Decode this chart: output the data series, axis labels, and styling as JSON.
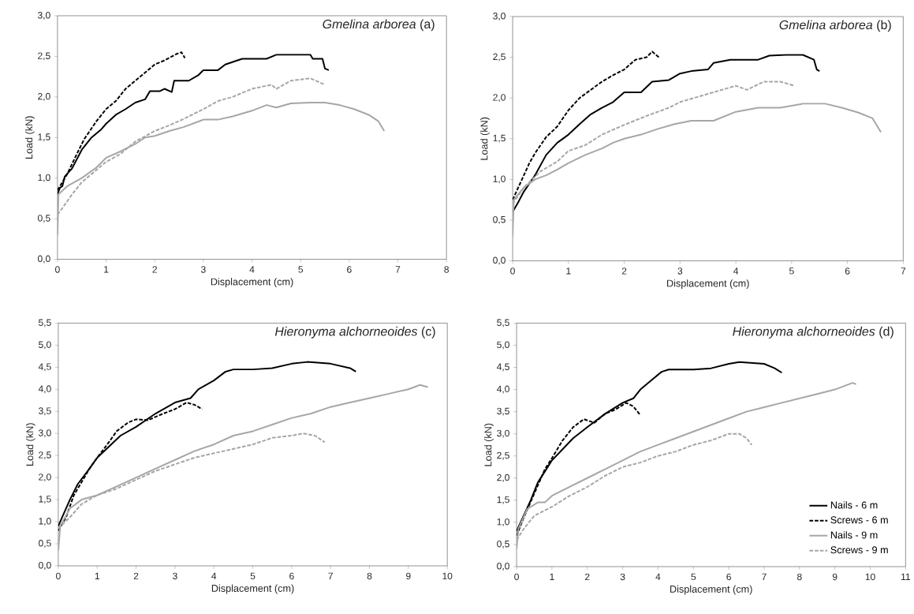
{
  "chart_data": [
    {
      "type": "line",
      "title": "*Gmelina arborea* (a)",
      "xlabel": "Displacement (cm)",
      "ylabel": "Load (kN)",
      "xlim": [
        0,
        8
      ],
      "xticks": [
        0,
        1,
        2,
        3,
        4,
        5,
        6,
        7,
        8
      ],
      "ylim": [
        0,
        3
      ],
      "yticks": [
        {
          "value": 0,
          "label": "0,0"
        },
        {
          "value": 0.5,
          "label": "0,5"
        },
        {
          "value": 1,
          "label": "1,0"
        },
        {
          "value": 1.5,
          "label": "1,5"
        },
        {
          "value": 2,
          "label": "2,0"
        },
        {
          "value": 2.5,
          "label": "2,5"
        },
        {
          "value": 3,
          "label": "3,0"
        }
      ],
      "series": [
        {
          "color": "#000000",
          "line_style": "solid",
          "x": [
            0,
            0.05,
            0.1,
            0.15,
            0.3,
            0.5,
            0.7,
            0.9,
            1.0,
            1.2,
            1.4,
            1.6,
            1.8,
            1.9,
            2.1,
            2.2,
            2.35,
            2.4,
            2.7,
            2.9,
            3.0,
            3.3,
            3.45,
            3.7,
            3.8,
            4.3,
            4.5,
            4.8,
            5.2,
            5.25,
            5.45,
            5.5,
            5.58
          ],
          "values": [
            0.8,
            0.88,
            0.9,
            1.02,
            1.12,
            1.35,
            1.5,
            1.6,
            1.67,
            1.78,
            1.85,
            1.93,
            1.97,
            2.07,
            2.07,
            2.1,
            2.06,
            2.2,
            2.2,
            2.27,
            2.33,
            2.33,
            2.4,
            2.45,
            2.47,
            2.47,
            2.52,
            2.52,
            2.52,
            2.47,
            2.47,
            2.35,
            2.33
          ]
        },
        {
          "color": "#000000",
          "line_style": "dashed",
          "x": [
            0,
            0.2,
            0.4,
            0.55,
            0.8,
            1.0,
            1.2,
            1.4,
            1.6,
            1.8,
            2.0,
            2.2,
            2.45,
            2.55,
            2.62
          ],
          "values": [
            0.85,
            1.05,
            1.3,
            1.48,
            1.7,
            1.85,
            1.95,
            2.1,
            2.2,
            2.3,
            2.4,
            2.45,
            2.53,
            2.55,
            2.48
          ]
        },
        {
          "color": "#a6a6a6",
          "line_style": "solid",
          "x": [
            0,
            0.02,
            0.2,
            0.5,
            0.8,
            1.0,
            1.3,
            1.6,
            1.8,
            2.0,
            2.3,
            2.6,
            3.0,
            3.3,
            3.6,
            4.0,
            4.3,
            4.5,
            4.8,
            5.2,
            5.5,
            5.8,
            6.1,
            6.4,
            6.6,
            6.72
          ],
          "values": [
            0.3,
            0.8,
            0.9,
            1.0,
            1.13,
            1.25,
            1.33,
            1.42,
            1.5,
            1.52,
            1.58,
            1.63,
            1.72,
            1.72,
            1.76,
            1.83,
            1.9,
            1.87,
            1.92,
            1.93,
            1.93,
            1.9,
            1.85,
            1.78,
            1.7,
            1.58
          ]
        },
        {
          "color": "#a6a6a6",
          "line_style": "dashed",
          "x": [
            0,
            0.1,
            0.3,
            0.5,
            0.8,
            1.0,
            1.3,
            1.6,
            2.0,
            2.3,
            2.6,
            3.0,
            3.3,
            3.6,
            4.0,
            4.4,
            4.5,
            4.8,
            5.2,
            5.5
          ],
          "values": [
            0.55,
            0.63,
            0.8,
            0.95,
            1.1,
            1.2,
            1.3,
            1.45,
            1.58,
            1.65,
            1.73,
            1.85,
            1.95,
            2.0,
            2.1,
            2.15,
            2.1,
            2.2,
            2.23,
            2.15
          ]
        }
      ]
    },
    {
      "type": "line",
      "title": "*Gmelina arborea* (b)",
      "xlabel": "Displacement (cm)",
      "ylabel": "Load (kN)",
      "xlim": [
        0,
        7
      ],
      "xticks": [
        0,
        1,
        2,
        3,
        4,
        5,
        6,
        7
      ],
      "ylim": [
        0,
        3
      ],
      "yticks": [
        {
          "value": 0,
          "label": "0,0"
        },
        {
          "value": 0.5,
          "label": "0,5"
        },
        {
          "value": 1,
          "label": "1,0"
        },
        {
          "value": 1.5,
          "label": "1,5"
        },
        {
          "value": 2,
          "label": "2,0"
        },
        {
          "value": 2.5,
          "label": "2,5"
        },
        {
          "value": 3,
          "label": "3,0"
        }
      ],
      "series": [
        {
          "color": "#000000",
          "line_style": "solid",
          "x": [
            0,
            0.1,
            0.2,
            0.4,
            0.6,
            0.8,
            1.0,
            1.2,
            1.4,
            1.6,
            1.8,
            2.0,
            2.3,
            2.5,
            2.8,
            3.0,
            3.2,
            3.5,
            3.6,
            3.9,
            4.4,
            4.6,
            4.9,
            5.2,
            5.4,
            5.45,
            5.5
          ],
          "values": [
            0.6,
            0.72,
            0.85,
            1.05,
            1.3,
            1.45,
            1.55,
            1.68,
            1.8,
            1.88,
            1.95,
            2.07,
            2.07,
            2.2,
            2.22,
            2.3,
            2.33,
            2.35,
            2.43,
            2.47,
            2.47,
            2.52,
            2.53,
            2.53,
            2.47,
            2.35,
            2.33
          ]
        },
        {
          "color": "#000000",
          "line_style": "dashed",
          "x": [
            0,
            0.1,
            0.3,
            0.4,
            0.6,
            0.8,
            1.0,
            1.2,
            1.4,
            1.6,
            1.8,
            2.0,
            2.2,
            2.4,
            2.5,
            2.62
          ],
          "values": [
            0.75,
            0.9,
            1.2,
            1.32,
            1.52,
            1.65,
            1.85,
            2.0,
            2.1,
            2.2,
            2.28,
            2.35,
            2.47,
            2.5,
            2.57,
            2.5
          ]
        },
        {
          "color": "#a6a6a6",
          "line_style": "solid",
          "x": [
            0,
            0.02,
            0.2,
            0.4,
            0.6,
            0.8,
            1.0,
            1.3,
            1.6,
            1.8,
            2.0,
            2.3,
            2.6,
            2.9,
            3.2,
            3.6,
            4.0,
            4.4,
            4.8,
            5.2,
            5.6,
            5.9,
            6.2,
            6.45,
            6.6
          ],
          "values": [
            0.3,
            0.75,
            0.9,
            1.0,
            1.05,
            1.12,
            1.2,
            1.3,
            1.38,
            1.45,
            1.5,
            1.55,
            1.62,
            1.68,
            1.72,
            1.72,
            1.83,
            1.88,
            1.88,
            1.93,
            1.93,
            1.88,
            1.82,
            1.75,
            1.58
          ]
        },
        {
          "color": "#a6a6a6",
          "line_style": "dashed",
          "x": [
            0,
            0.2,
            0.5,
            0.8,
            1.0,
            1.3,
            1.6,
            2.0,
            2.4,
            2.8,
            3.0,
            3.5,
            4.0,
            4.2,
            4.5,
            4.8,
            5.05
          ],
          "values": [
            0.7,
            0.9,
            1.1,
            1.22,
            1.35,
            1.42,
            1.55,
            1.67,
            1.78,
            1.88,
            1.95,
            2.05,
            2.15,
            2.1,
            2.2,
            2.2,
            2.15
          ]
        }
      ]
    },
    {
      "type": "line",
      "title": "*Hieronyma alchorneoides* (c)",
      "xlabel": "Displacement (cm)",
      "ylabel": "Load (kN)",
      "xlim": [
        0,
        10
      ],
      "xticks": [
        0,
        1,
        2,
        3,
        4,
        5,
        6,
        7,
        8,
        9,
        10
      ],
      "ylim": [
        0,
        5.5
      ],
      "yticks": [
        {
          "value": 0,
          "label": "0,0"
        },
        {
          "value": 0.5,
          "label": "0,5"
        },
        {
          "value": 1,
          "label": "1,0"
        },
        {
          "value": 1.5,
          "label": "1,5"
        },
        {
          "value": 2,
          "label": "2,0"
        },
        {
          "value": 2.5,
          "label": "2,5"
        },
        {
          "value": 3,
          "label": "3,0"
        },
        {
          "value": 3.5,
          "label": "3,5"
        },
        {
          "value": 4,
          "label": "4,0"
        },
        {
          "value": 4.5,
          "label": "4,5"
        },
        {
          "value": 5,
          "label": "5,0"
        },
        {
          "value": 5.5,
          "label": "5,5"
        }
      ],
      "series": [
        {
          "color": "#000000",
          "line_style": "solid",
          "x": [
            0,
            0.1,
            0.3,
            0.5,
            0.8,
            1.0,
            1.3,
            1.6,
            2.0,
            2.5,
            3.0,
            3.4,
            3.6,
            4.0,
            4.3,
            4.5,
            5.0,
            5.5,
            6.0,
            6.4,
            7.0,
            7.5,
            7.65
          ],
          "values": [
            0.9,
            1.1,
            1.5,
            1.85,
            2.2,
            2.45,
            2.7,
            2.95,
            3.15,
            3.45,
            3.7,
            3.8,
            4.0,
            4.2,
            4.4,
            4.45,
            4.45,
            4.48,
            4.58,
            4.62,
            4.58,
            4.48,
            4.4
          ]
        },
        {
          "color": "#000000",
          "line_style": "dashed",
          "x": [
            0,
            0.2,
            0.4,
            0.6,
            0.8,
            1.0,
            1.3,
            1.5,
            1.8,
            2.0,
            2.3,
            2.7,
            3.0,
            3.3,
            3.5,
            3.7
          ],
          "values": [
            0.8,
            1.1,
            1.6,
            1.9,
            2.2,
            2.45,
            2.8,
            3.05,
            3.25,
            3.32,
            3.3,
            3.45,
            3.55,
            3.7,
            3.65,
            3.55
          ]
        },
        {
          "color": "#a6a6a6",
          "line_style": "solid",
          "x": [
            0,
            0.05,
            0.3,
            0.6,
            1.0,
            1.5,
            2.0,
            2.5,
            3.0,
            3.5,
            4.0,
            4.5,
            5.0,
            5.5,
            6.0,
            6.5,
            7.0,
            7.5,
            8.0,
            8.5,
            9.0,
            9.3,
            9.5
          ],
          "values": [
            0.35,
            0.9,
            1.3,
            1.5,
            1.6,
            1.8,
            2.0,
            2.2,
            2.4,
            2.6,
            2.75,
            2.95,
            3.05,
            3.2,
            3.35,
            3.45,
            3.6,
            3.7,
            3.8,
            3.9,
            4.0,
            4.1,
            4.05
          ]
        },
        {
          "color": "#a6a6a6",
          "line_style": "dashed",
          "x": [
            0,
            0.3,
            0.6,
            1.0,
            1.5,
            2.0,
            2.5,
            3.0,
            3.5,
            4.0,
            4.5,
            5.0,
            5.5,
            6.0,
            6.3,
            6.6,
            6.85
          ],
          "values": [
            0.85,
            1.1,
            1.4,
            1.6,
            1.75,
            1.95,
            2.15,
            2.3,
            2.45,
            2.55,
            2.65,
            2.75,
            2.9,
            2.95,
            3.0,
            2.95,
            2.8
          ]
        }
      ]
    },
    {
      "type": "line",
      "title": "*Hieronyma alchorneoides* (d)",
      "xlabel": "Displacement (cm)",
      "ylabel": "Load (kN)",
      "legend": "bottom right",
      "xlim": [
        0,
        11
      ],
      "xticks": [
        0,
        1,
        2,
        3,
        4,
        5,
        6,
        7,
        8,
        9,
        10,
        11
      ],
      "ylim": [
        0,
        5.5
      ],
      "yticks": [
        {
          "value": 0,
          "label": "0,0"
        },
        {
          "value": 0.5,
          "label": "0,5"
        },
        {
          "value": 1,
          "label": "1,0"
        },
        {
          "value": 1.5,
          "label": "1,5"
        },
        {
          "value": 2,
          "label": "2,0"
        },
        {
          "value": 2.5,
          "label": "2,5"
        },
        {
          "value": 3,
          "label": "3,0"
        },
        {
          "value": 3.5,
          "label": "3,5"
        },
        {
          "value": 4,
          "label": "4,0"
        },
        {
          "value": 4.5,
          "label": "4,5"
        },
        {
          "value": 5,
          "label": "5,0"
        },
        {
          "value": 5.5,
          "label": "5,5"
        }
      ],
      "series": [
        {
          "name": "Nails - 6 m",
          "color": "#000000",
          "line_style": "solid",
          "x": [
            0,
            0.2,
            0.4,
            0.6,
            0.8,
            1.0,
            1.3,
            1.6,
            2.0,
            2.5,
            3.0,
            3.3,
            3.5,
            3.8,
            4.1,
            4.3,
            5.0,
            5.5,
            6.0,
            6.3,
            7.0,
            7.3,
            7.5
          ],
          "values": [
            0.8,
            1.15,
            1.5,
            1.9,
            2.15,
            2.4,
            2.65,
            2.9,
            3.15,
            3.45,
            3.7,
            3.8,
            4.0,
            4.2,
            4.4,
            4.45,
            4.45,
            4.48,
            4.58,
            4.62,
            4.58,
            4.48,
            4.38
          ]
        },
        {
          "name": "Screws - 6 m",
          "color": "#000000",
          "line_style": "dashed",
          "x": [
            0,
            0.2,
            0.5,
            0.8,
            1.0,
            1.3,
            1.6,
            1.9,
            2.2,
            2.5,
            2.8,
            3.1,
            3.3,
            3.5
          ],
          "values": [
            0.7,
            1.1,
            1.65,
            2.2,
            2.45,
            2.85,
            3.15,
            3.33,
            3.25,
            3.45,
            3.55,
            3.7,
            3.62,
            3.42
          ]
        },
        {
          "name": "Nails - 9 m",
          "color": "#a6a6a6",
          "line_style": "solid",
          "x": [
            0,
            0.05,
            0.3,
            0.6,
            0.8,
            1.0,
            1.5,
            2.0,
            2.5,
            3.0,
            3.5,
            4.0,
            4.5,
            5.0,
            5.5,
            6.0,
            6.5,
            7.0,
            7.5,
            8.0,
            8.5,
            9.0,
            9.5,
            9.6
          ],
          "values": [
            0.4,
            0.85,
            1.3,
            1.45,
            1.45,
            1.6,
            1.8,
            2.0,
            2.2,
            2.4,
            2.6,
            2.75,
            2.9,
            3.05,
            3.2,
            3.35,
            3.5,
            3.6,
            3.7,
            3.8,
            3.9,
            4.0,
            4.15,
            4.12
          ]
        },
        {
          "name": "Screws - 9 m",
          "color": "#a6a6a6",
          "line_style": "dashed",
          "x": [
            0,
            0.2,
            0.5,
            1.0,
            1.5,
            2.0,
            2.5,
            3.0,
            3.5,
            4.0,
            4.5,
            5.0,
            5.5,
            6.0,
            6.3,
            6.5,
            6.65
          ],
          "values": [
            0.6,
            0.85,
            1.15,
            1.35,
            1.6,
            1.8,
            2.05,
            2.25,
            2.35,
            2.5,
            2.6,
            2.75,
            2.85,
            3.0,
            3.0,
            2.9,
            2.75
          ]
        }
      ]
    }
  ]
}
